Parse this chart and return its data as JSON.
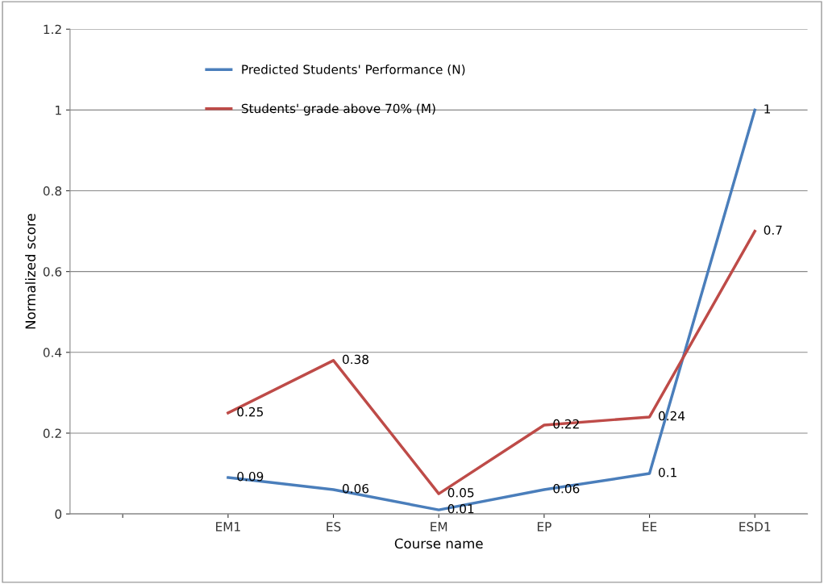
{
  "chart_data": {
    "type": "line",
    "xlabel": "Course name",
    "ylabel": "Normalized score",
    "categories": [
      null,
      "EM1",
      "ES",
      "EM",
      "EP",
      "EE",
      "ESD1"
    ],
    "series": [
      {
        "name": "Predicted Students' Performance (N)",
        "color": "#4a7ebb",
        "values": [
          null,
          0.09,
          0.06,
          0.01,
          0.06,
          0.1,
          1
        ]
      },
      {
        "name": "Students' grade above 70% (M)",
        "color": "#be4b48",
        "values": [
          null,
          0.25,
          0.38,
          0.05,
          0.22,
          0.24,
          0.7
        ]
      }
    ],
    "ylim": [
      0,
      1.2
    ],
    "yticks": [
      0,
      0.2,
      0.4,
      0.6,
      0.8,
      1,
      1.2
    ],
    "grid": "y",
    "legend": "top left",
    "data_labels": true,
    "marker": "none",
    "line_style": "solid"
  }
}
